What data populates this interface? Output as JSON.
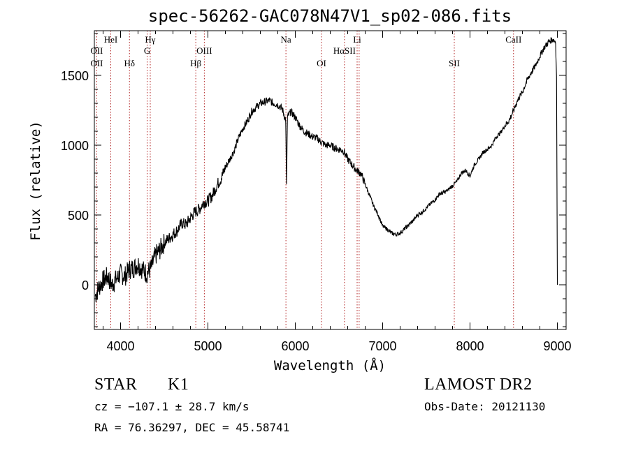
{
  "chart_data": {
    "type": "line",
    "title": "spec-56262-GAC078N47V1_sp02-086.fits",
    "xlabel": "Wavelength (Å)",
    "ylabel": "Flux (relative)",
    "xlim": [
      3700,
      9100
    ],
    "ylim": [
      -320,
      1820
    ],
    "xticks": [
      4000,
      5000,
      6000,
      7000,
      8000,
      9000
    ],
    "yticks": [
      0,
      500,
      1000,
      1500
    ],
    "xminor_step": 200,
    "yminor_step": 100,
    "grid": false,
    "line_color": "#000000",
    "marker_color": "#b22222",
    "series": [
      {
        "name": "",
        "x": [
          3710,
          3750,
          3800,
          3850,
          3900,
          3950,
          4000,
          4050,
          4100,
          4150,
          4200,
          4250,
          4300,
          4350,
          4400,
          4450,
          4500,
          4550,
          4600,
          4650,
          4700,
          4750,
          4800,
          4850,
          4900,
          4950,
          5000,
          5050,
          5100,
          5150,
          5200,
          5250,
          5300,
          5350,
          5400,
          5450,
          5500,
          5550,
          5600,
          5650,
          5700,
          5750,
          5800,
          5850,
          5890,
          5900,
          5910,
          5950,
          6000,
          6050,
          6100,
          6150,
          6200,
          6250,
          6300,
          6350,
          6400,
          6450,
          6500,
          6550,
          6600,
          6650,
          6700,
          6750,
          6800,
          6850,
          6900,
          6950,
          7000,
          7050,
          7100,
          7150,
          7200,
          7250,
          7300,
          7350,
          7400,
          7450,
          7500,
          7550,
          7600,
          7650,
          7700,
          7750,
          7800,
          7850,
          7900,
          7950,
          8000,
          8050,
          8100,
          8150,
          8200,
          8250,
          8300,
          8350,
          8400,
          8450,
          8500,
          8550,
          8600,
          8650,
          8700,
          8750,
          8800,
          8850,
          8900,
          8950,
          8980,
          8990,
          9000
        ],
        "y": [
          -80,
          -20,
          30,
          60,
          0,
          40,
          80,
          60,
          110,
          120,
          150,
          110,
          80,
          120,
          210,
          250,
          300,
          330,
          360,
          390,
          440,
          430,
          480,
          520,
          540,
          590,
          600,
          640,
          710,
          760,
          840,
          900,
          960,
          1050,
          1120,
          1170,
          1240,
          1270,
          1300,
          1310,
          1320,
          1300,
          1290,
          1260,
          1180,
          700,
          1200,
          1240,
          1200,
          1140,
          1100,
          1080,
          1060,
          1050,
          1020,
          1000,
          1000,
          980,
          970,
          960,
          900,
          860,
          820,
          800,
          720,
          640,
          560,
          500,
          420,
          400,
          370,
          360,
          370,
          400,
          430,
          460,
          500,
          520,
          550,
          580,
          610,
          650,
          660,
          680,
          710,
          740,
          800,
          820,
          780,
          860,
          900,
          950,
          970,
          1000,
          1060,
          1090,
          1140,
          1180,
          1250,
          1330,
          1380,
          1460,
          1520,
          1570,
          1640,
          1700,
          1740,
          1760,
          1740,
          1500,
          0
        ]
      }
    ],
    "line_markers": [
      {
        "name": "OII",
        "wavelength": 3727,
        "row": 1
      },
      {
        "name": "OII",
        "wavelength": 3727,
        "row": 2
      },
      {
        "name": "HeI",
        "wavelength": 3888,
        "row": 0
      },
      {
        "name": "Hδ",
        "wavelength": 4102,
        "row": 2
      },
      {
        "name": "Hγ",
        "wavelength": 4340,
        "row": 0
      },
      {
        "name": "G",
        "wavelength": 4305,
        "row": 1
      },
      {
        "name": "OIII",
        "wavelength": 4959,
        "row": 1
      },
      {
        "name": "Hβ",
        "wavelength": 4861,
        "row": 2
      },
      {
        "name": "Na",
        "wavelength": 5893,
        "row": 0
      },
      {
        "name": "OI",
        "wavelength": 6300,
        "row": 2
      },
      {
        "name": "Li",
        "wavelength": 6708,
        "row": 0
      },
      {
        "name": "HαSII",
        "wavelength": 6563,
        "row": 1
      },
      {
        "name": "",
        "wavelength": 6731,
        "row": 1
      },
      {
        "name": "SII",
        "wavelength": 7820,
        "row": 2
      },
      {
        "name": "CaII",
        "wavelength": 8498,
        "row": 0
      }
    ]
  },
  "footer": {
    "object_class": "STAR",
    "subclass": "K1",
    "cz": "cz = −107.1 ± 28.7 km/s",
    "coords": "RA =  76.36297, DEC =  45.58741",
    "survey": "LAMOST DR2",
    "obs_date": "Obs-Date: 20121130"
  }
}
